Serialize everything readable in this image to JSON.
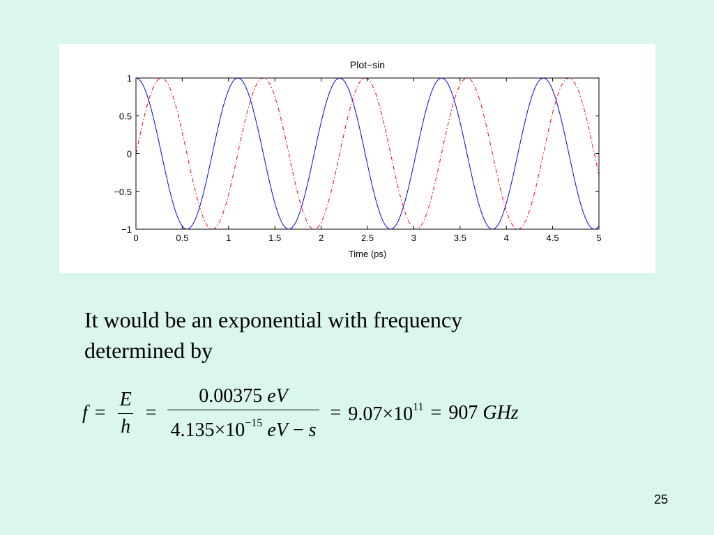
{
  "chart_data": {
    "type": "line",
    "title": "Plot−sin",
    "xlabel": "Time (ps)",
    "ylabel": "",
    "xlim": [
      0,
      5
    ],
    "ylim": [
      -1,
      1
    ],
    "xticks": [
      0,
      0.5,
      1,
      1.5,
      2,
      2.5,
      3,
      3.5,
      4,
      4.5,
      5
    ],
    "xtick_labels": [
      "0",
      "0.5",
      "1",
      "1.5",
      "2",
      "2.5",
      "3",
      "3.5",
      "4",
      "4.5",
      "5"
    ],
    "yticks": [
      1,
      0.5,
      0,
      -0.5,
      -1
    ],
    "ytick_labels": [
      "1",
      "0.5",
      "0",
      "−0.5",
      "−1"
    ],
    "grid": false,
    "series": [
      {
        "color": "#0000ff",
        "style": "solid",
        "function": "cos",
        "period": 1.1,
        "x": [
          0,
          0.275,
          0.55,
          0.825,
          1.1,
          1.375,
          1.65,
          1.925,
          2.2,
          2.475,
          2.75,
          3.025,
          3.3,
          3.575,
          3.85,
          4.125,
          4.4,
          4.675,
          4.95,
          5.0
        ],
        "values": [
          1,
          0,
          -1,
          0,
          1,
          0,
          -1,
          0,
          1,
          0,
          -1,
          0,
          1,
          0,
          -1,
          0,
          1,
          0,
          -1,
          -0.99
        ]
      },
      {
        "color": "#ff0000",
        "style": "dash-dot",
        "function": "sin",
        "period": 1.1,
        "x": [
          0,
          0.275,
          0.55,
          0.825,
          1.1,
          1.375,
          1.65,
          1.925,
          2.2,
          2.475,
          2.75,
          3.025,
          3.3,
          3.575,
          3.85,
          4.125,
          4.4,
          4.675,
          4.95,
          5.0
        ],
        "values": [
          0,
          1,
          0,
          -1,
          0,
          1,
          0,
          -1,
          0,
          1,
          0,
          -1,
          0,
          1,
          0,
          -1,
          0,
          1,
          0,
          -0.14
        ]
      }
    ]
  },
  "text": {
    "line1": "It would be an exponential with frequency",
    "line2": "determined by"
  },
  "equation": {
    "f": "f",
    "eq": "=",
    "E": "E",
    "h": "h",
    "num_value": "0.00375",
    "num_unit": "eV",
    "den_value": "4.135",
    "times": "×",
    "ten": "10",
    "den_exp": "−15",
    "den_unit": "eV",
    "minus": "−",
    "s": "s",
    "result_mantissa": "9.07",
    "result_exp": "11",
    "final_value": "907",
    "final_unit": "GHz"
  },
  "slide_number": "25"
}
